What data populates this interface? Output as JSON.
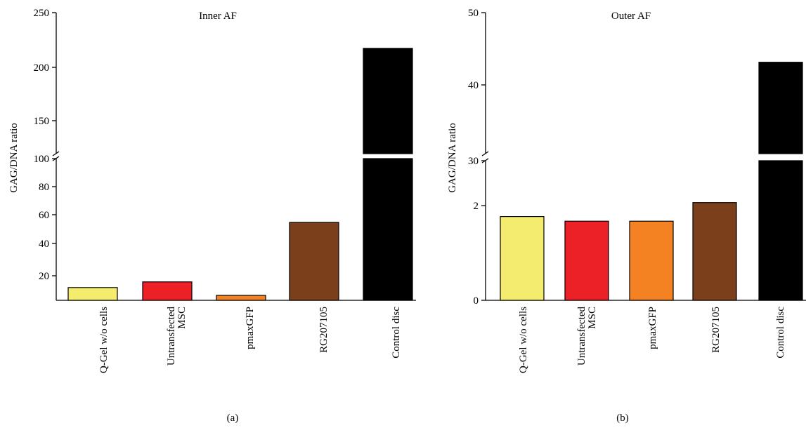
{
  "chart_data": [
    {
      "type": "bar",
      "title": "Inner AF",
      "panel_label": "(a)",
      "ylabel": "GAG/DNA ratio",
      "axis_break": true,
      "ylim_lower": [
        0,
        100
      ],
      "ylim_upper": [
        100,
        250
      ],
      "lower_ticks": [
        "20",
        "40",
        "60",
        "80",
        "100"
      ],
      "upper_ticks": [
        "150",
        "200",
        "250"
      ],
      "categories": [
        "Q-Gel w/o cells",
        "Untransfected MSC",
        "pmaxGFP",
        "RG207105",
        "Control disc"
      ],
      "values": [
        9,
        13,
        3.5,
        55,
        212
      ],
      "colors": [
        "#f4ec6e",
        "#ec2027",
        "#f48222",
        "#7b3f1c",
        "#000000"
      ]
    },
    {
      "type": "bar",
      "title": "Outer AF",
      "panel_label": "(b)",
      "ylabel": "GAG/DNA ratio",
      "axis_break": true,
      "ylim_lower": [
        0,
        3
      ],
      "ylim_upper": [
        30,
        50
      ],
      "lower_ticks": [
        "0",
        "2",
        "30"
      ],
      "upper_ticks": [
        "40",
        "50"
      ],
      "categories": [
        "Q-Gel w/o cells",
        "Untransfected MSC",
        "pmaxGFP",
        "RG207105",
        "Control disc"
      ],
      "values": [
        1.8,
        1.7,
        1.7,
        2.1,
        43
      ],
      "colors": [
        "#f4ec6e",
        "#ec2027",
        "#f48222",
        "#7b3f1c",
        "#000000"
      ]
    }
  ]
}
